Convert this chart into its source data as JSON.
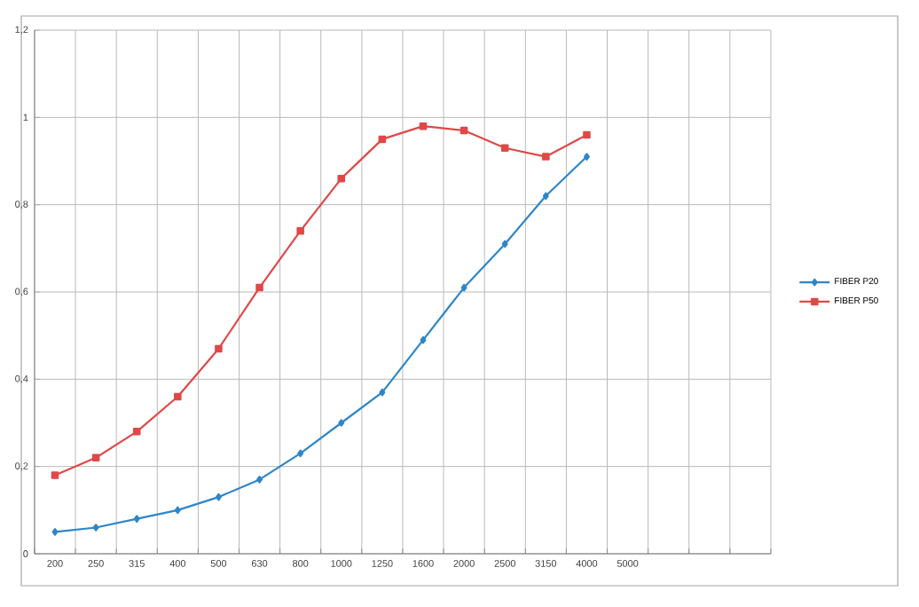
{
  "chart_data": {
    "type": "line",
    "categories": [
      "200",
      "250",
      "315",
      "400",
      "500",
      "630",
      "800",
      "1000",
      "1250",
      "1600",
      "2000",
      "2500",
      "3150",
      "4000",
      "5000",
      null,
      null,
      null
    ],
    "series": [
      {
        "name": "FIBER P20",
        "color": "#2e86c8",
        "marker": "diamond",
        "values": [
          0.05,
          0.06,
          0.08,
          0.1,
          0.13,
          0.17,
          0.23,
          0.3,
          0.37,
          0.49,
          0.61,
          0.71,
          0.82,
          0.91,
          null,
          null,
          null,
          null
        ]
      },
      {
        "name": "FIBER P50",
        "color": "#e04848",
        "marker": "square",
        "values": [
          0.18,
          0.22,
          0.28,
          0.36,
          0.47,
          0.61,
          0.74,
          0.86,
          0.95,
          0.98,
          0.97,
          0.93,
          0.91,
          0.96,
          null,
          null,
          null,
          null
        ]
      }
    ],
    "ylim": [
      0,
      1.2
    ],
    "yticks": [
      0,
      {
        "value": 0.2,
        "label": "0,2"
      },
      {
        "value": 0.4,
        "label": "0,4"
      },
      {
        "value": 0.6,
        "label": "0,6"
      },
      {
        "value": 0.8,
        "label": "0,8"
      },
      1,
      {
        "value": 1.2,
        "label": "1,2"
      }
    ],
    "grid": true,
    "legend": "right",
    "line_style": "solid"
  }
}
